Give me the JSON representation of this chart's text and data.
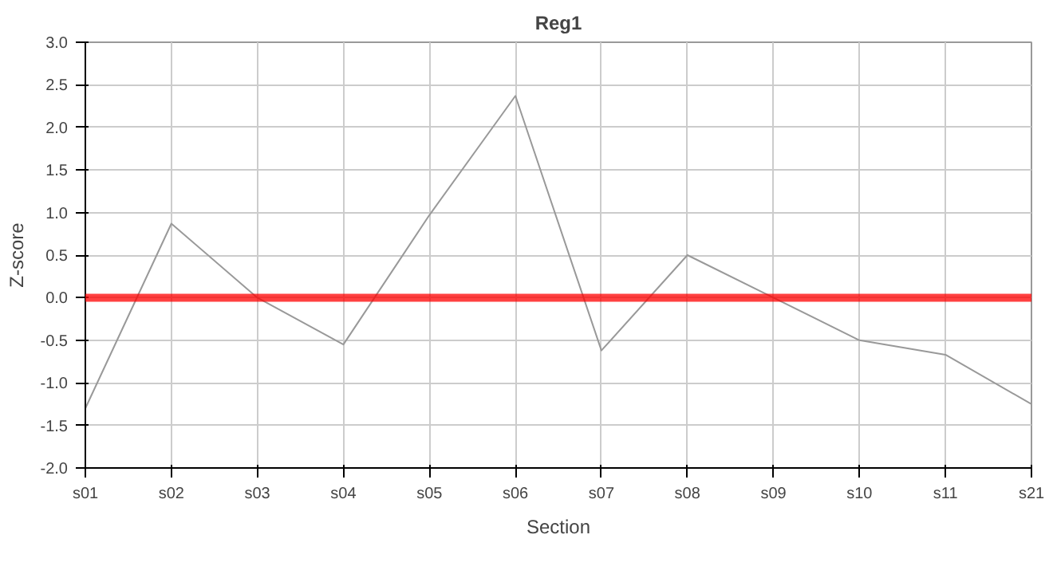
{
  "chart_data": {
    "type": "line",
    "title": "Reg1",
    "xlabel": "Section",
    "ylabel": "Z-score",
    "categories": [
      "s01",
      "s02",
      "s03",
      "s04",
      "s05",
      "s06",
      "s07",
      "s08",
      "s09",
      "s10",
      "s11",
      "s21"
    ],
    "series": [
      {
        "color": "#999999",
        "values": [
          -1.3,
          0.87,
          0.0,
          -0.55,
          0.97,
          2.37,
          -0.62,
          0.5,
          0.0,
          -0.5,
          -0.67,
          -1.25
        ]
      }
    ],
    "ylim": [
      -2.0,
      3.0
    ],
    "yticks": [
      {
        "value": -2,
        "label": "-2.0"
      },
      {
        "value": -1.5,
        "label": "-1.5"
      },
      {
        "value": -1,
        "label": "-1.0"
      },
      {
        "value": -0.5,
        "label": "-0.5"
      },
      {
        "value": 0,
        "label": "0.0"
      },
      {
        "value": 0.5,
        "label": "0.5"
      },
      {
        "value": 1,
        "label": "1.0"
      },
      {
        "value": 1.5,
        "label": "1.5"
      },
      {
        "value": 2,
        "label": "2.0"
      },
      {
        "value": 2.5,
        "label": "2.5"
      },
      {
        "value": 3,
        "label": "3.0"
      }
    ],
    "ref_lines": [
      {
        "axis": "y",
        "value": 0,
        "color": "#ff0000"
      }
    ],
    "grid": true
  }
}
